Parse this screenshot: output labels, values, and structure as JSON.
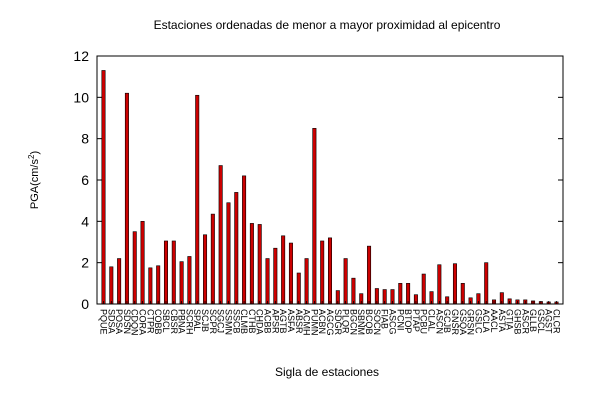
{
  "chart_data": {
    "type": "bar",
    "title": "Estaciones ordenadas de menor a mayor proximidad al epicentro",
    "xlabel": "Sigla de estaciones",
    "ylabel": "PGA(cm/s",
    "ylabel_sup": "2",
    "ylabel_tail": ")",
    "ylim": [
      0,
      12
    ],
    "yticks": [
      "0",
      "2",
      "4",
      "6",
      "8",
      "10",
      "12"
    ],
    "grid": false,
    "legend": "none",
    "bar_color": "#cc0000",
    "categories": [
      "PQUE",
      "SDSA",
      "POSA",
      "SDSN",
      "CDQN",
      "CORA",
      "CTPR",
      "COBB",
      "SBCL",
      "CBSR",
      "PBNA",
      "SCRH",
      "SPAL",
      "SCJB",
      "SCPR",
      "SGCJ",
      "SSMN",
      "SSCB",
      "CLMB",
      "CTHB",
      "CHDA",
      "ACBB",
      "APSR",
      "AGTB",
      "ASFA",
      "ABSR",
      "ACMH",
      "PUMN",
      "ACBN",
      "AGCG",
      "SDGR",
      "PLQR",
      "BGCN",
      "SBNM",
      "BCQB",
      "SOCN",
      "FIAB",
      "ASCG",
      "PCNI",
      "BTOP",
      "PTAP",
      "PCBU",
      "CLAL",
      "ASCN",
      "GCJB",
      "GNSR",
      "GSQA",
      "GRSN",
      "GSLC",
      "ACLA",
      "AACL",
      "ASTA",
      "GTIA",
      "GHSB",
      "ASCR",
      "GLLB",
      "GSCL",
      "AGST",
      "CLCR"
    ],
    "values": [
      11.3,
      1.8,
      2.2,
      10.2,
      3.5,
      4.0,
      1.75,
      1.85,
      3.05,
      3.05,
      2.05,
      2.3,
      10.1,
      3.35,
      4.35,
      6.7,
      4.9,
      5.4,
      6.2,
      3.9,
      3.85,
      2.2,
      2.7,
      3.3,
      2.95,
      1.5,
      2.2,
      8.5,
      3.05,
      3.2,
      0.65,
      2.2,
      1.25,
      0.5,
      2.8,
      0.75,
      0.7,
      0.7,
      1.0,
      1.0,
      0.45,
      1.45,
      0.6,
      1.9,
      0.35,
      1.95,
      1.0,
      0.3,
      0.5,
      2.0,
      0.2,
      0.55,
      0.25,
      0.2,
      0.2,
      0.15,
      0.12,
      0.1,
      0.1
    ]
  }
}
